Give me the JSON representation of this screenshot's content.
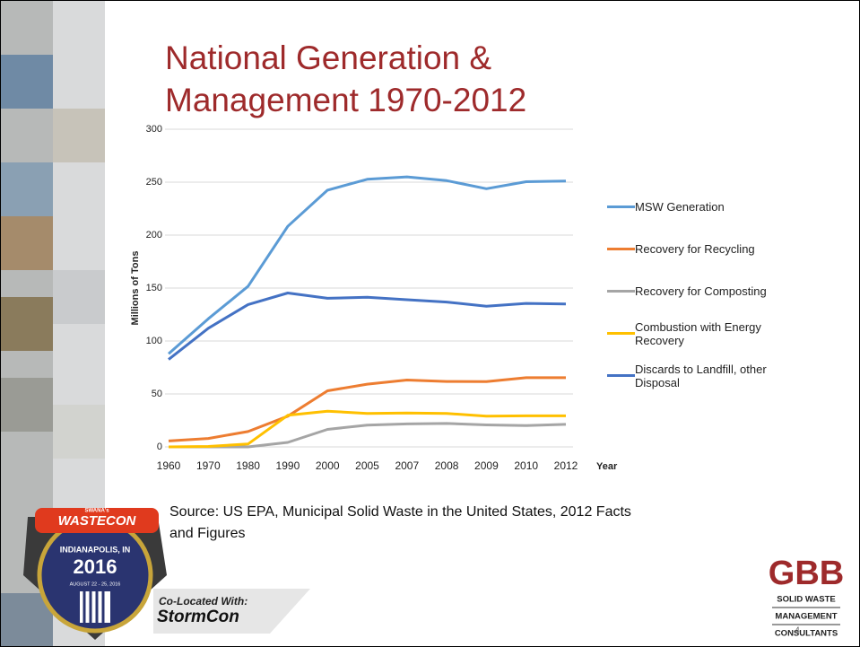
{
  "chart_data": {
    "type": "line",
    "title": "National Generation & Management 1970-2012",
    "x_label": "Year",
    "y_label": "Millions of Tons",
    "categories": [
      "1960",
      "1970",
      "1980",
      "1990",
      "2000",
      "2005",
      "2007",
      "2008",
      "2009",
      "2010",
      "2012"
    ],
    "ylim": [
      0,
      300
    ],
    "yticks": [
      0,
      50,
      100,
      150,
      200,
      250,
      300
    ],
    "grid": true,
    "legend": "right",
    "series": [
      {
        "name": "MSW Generation",
        "color": "#5b9bd5",
        "values": [
          88,
          121,
          151.6,
          208.3,
          242.5,
          252.7,
          255,
          251.4,
          243.8,
          250.4,
          251
        ]
      },
      {
        "name": "Recovery for Recycling",
        "color": "#ed7d31",
        "values": [
          5.6,
          8,
          14.5,
          29,
          53,
          59.2,
          63.1,
          61.8,
          61.7,
          65.3,
          65.3
        ]
      },
      {
        "name": "Recovery for Composting",
        "color": "#a5a5a5",
        "values": [
          0,
          0,
          0,
          4.2,
          16.5,
          20.6,
          21.7,
          22.1,
          20.8,
          20.2,
          21.3
        ]
      },
      {
        "name": "Combustion with Energy Recovery",
        "color": "#ffc000",
        "values": [
          0,
          0.4,
          2.7,
          29.8,
          33.7,
          31.6,
          32,
          31.6,
          29,
          29.3,
          29.3
        ]
      },
      {
        "name": "Discards to Landfill, other Disposal",
        "color": "#4472c4",
        "values": [
          82.5,
          112,
          134.4,
          145.3,
          140.3,
          141.3,
          139,
          136.8,
          132.8,
          135.5,
          135
        ]
      }
    ]
  },
  "slide": {
    "source": "Source: US EPA, Municipal Solid Waste in the United States, 2012 Facts and Figures",
    "page_number": "4",
    "wastecon": {
      "tag": "SWANA's",
      "name": "WASTECON",
      "city": "INDIANAPOLIS, IN",
      "year": "2016",
      "dates": "AUGUST 22 - 25, 2016"
    },
    "stormcon": {
      "tag": "Co-Located With:",
      "name": "StormCon"
    },
    "gbb": {
      "name": "GBB",
      "lines": [
        "SOLID WASTE",
        "MANAGEMENT",
        "CONSULTANTS"
      ]
    }
  }
}
